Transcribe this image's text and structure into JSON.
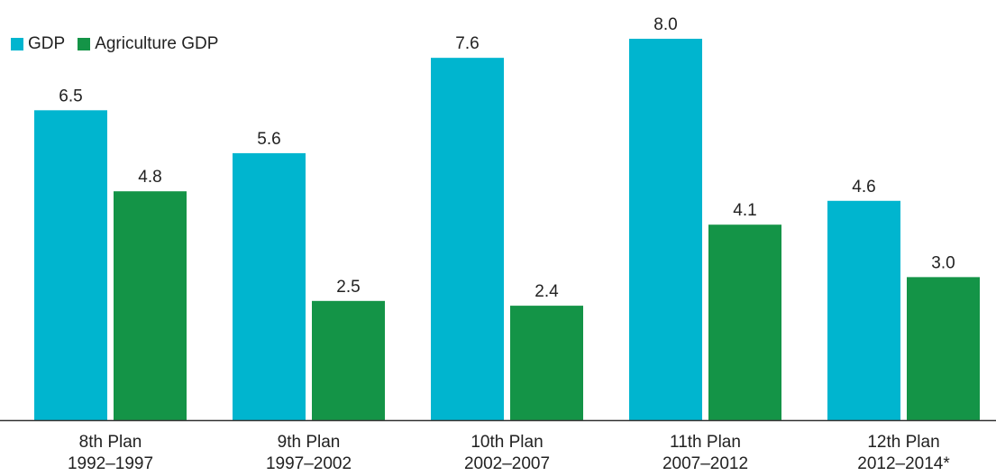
{
  "chart_data": {
    "type": "bar",
    "categories": [
      [
        "8th Plan",
        "1992–1997"
      ],
      [
        "9th Plan",
        "1997–2002"
      ],
      [
        "10th Plan",
        "2002–2007"
      ],
      [
        "11th Plan",
        "2007–2012"
      ],
      [
        "12th Plan",
        "2012–2014*"
      ]
    ],
    "series": [
      {
        "name": "GDP",
        "color": "#00b5cf",
        "values": [
          6.5,
          5.6,
          7.6,
          8.0,
          4.6
        ],
        "labels": [
          "6.5",
          "5.6",
          "7.6",
          "8.0",
          "4.6"
        ]
      },
      {
        "name": "Agriculture GDP",
        "color": "#149447",
        "values": [
          4.8,
          2.5,
          2.4,
          4.1,
          3.0
        ],
        "labels": [
          "4.8",
          "2.5",
          "2.4",
          "4.1",
          "3.0"
        ]
      }
    ],
    "ylim": [
      0,
      8.0
    ],
    "legend_position": "top-left",
    "grid": false
  }
}
